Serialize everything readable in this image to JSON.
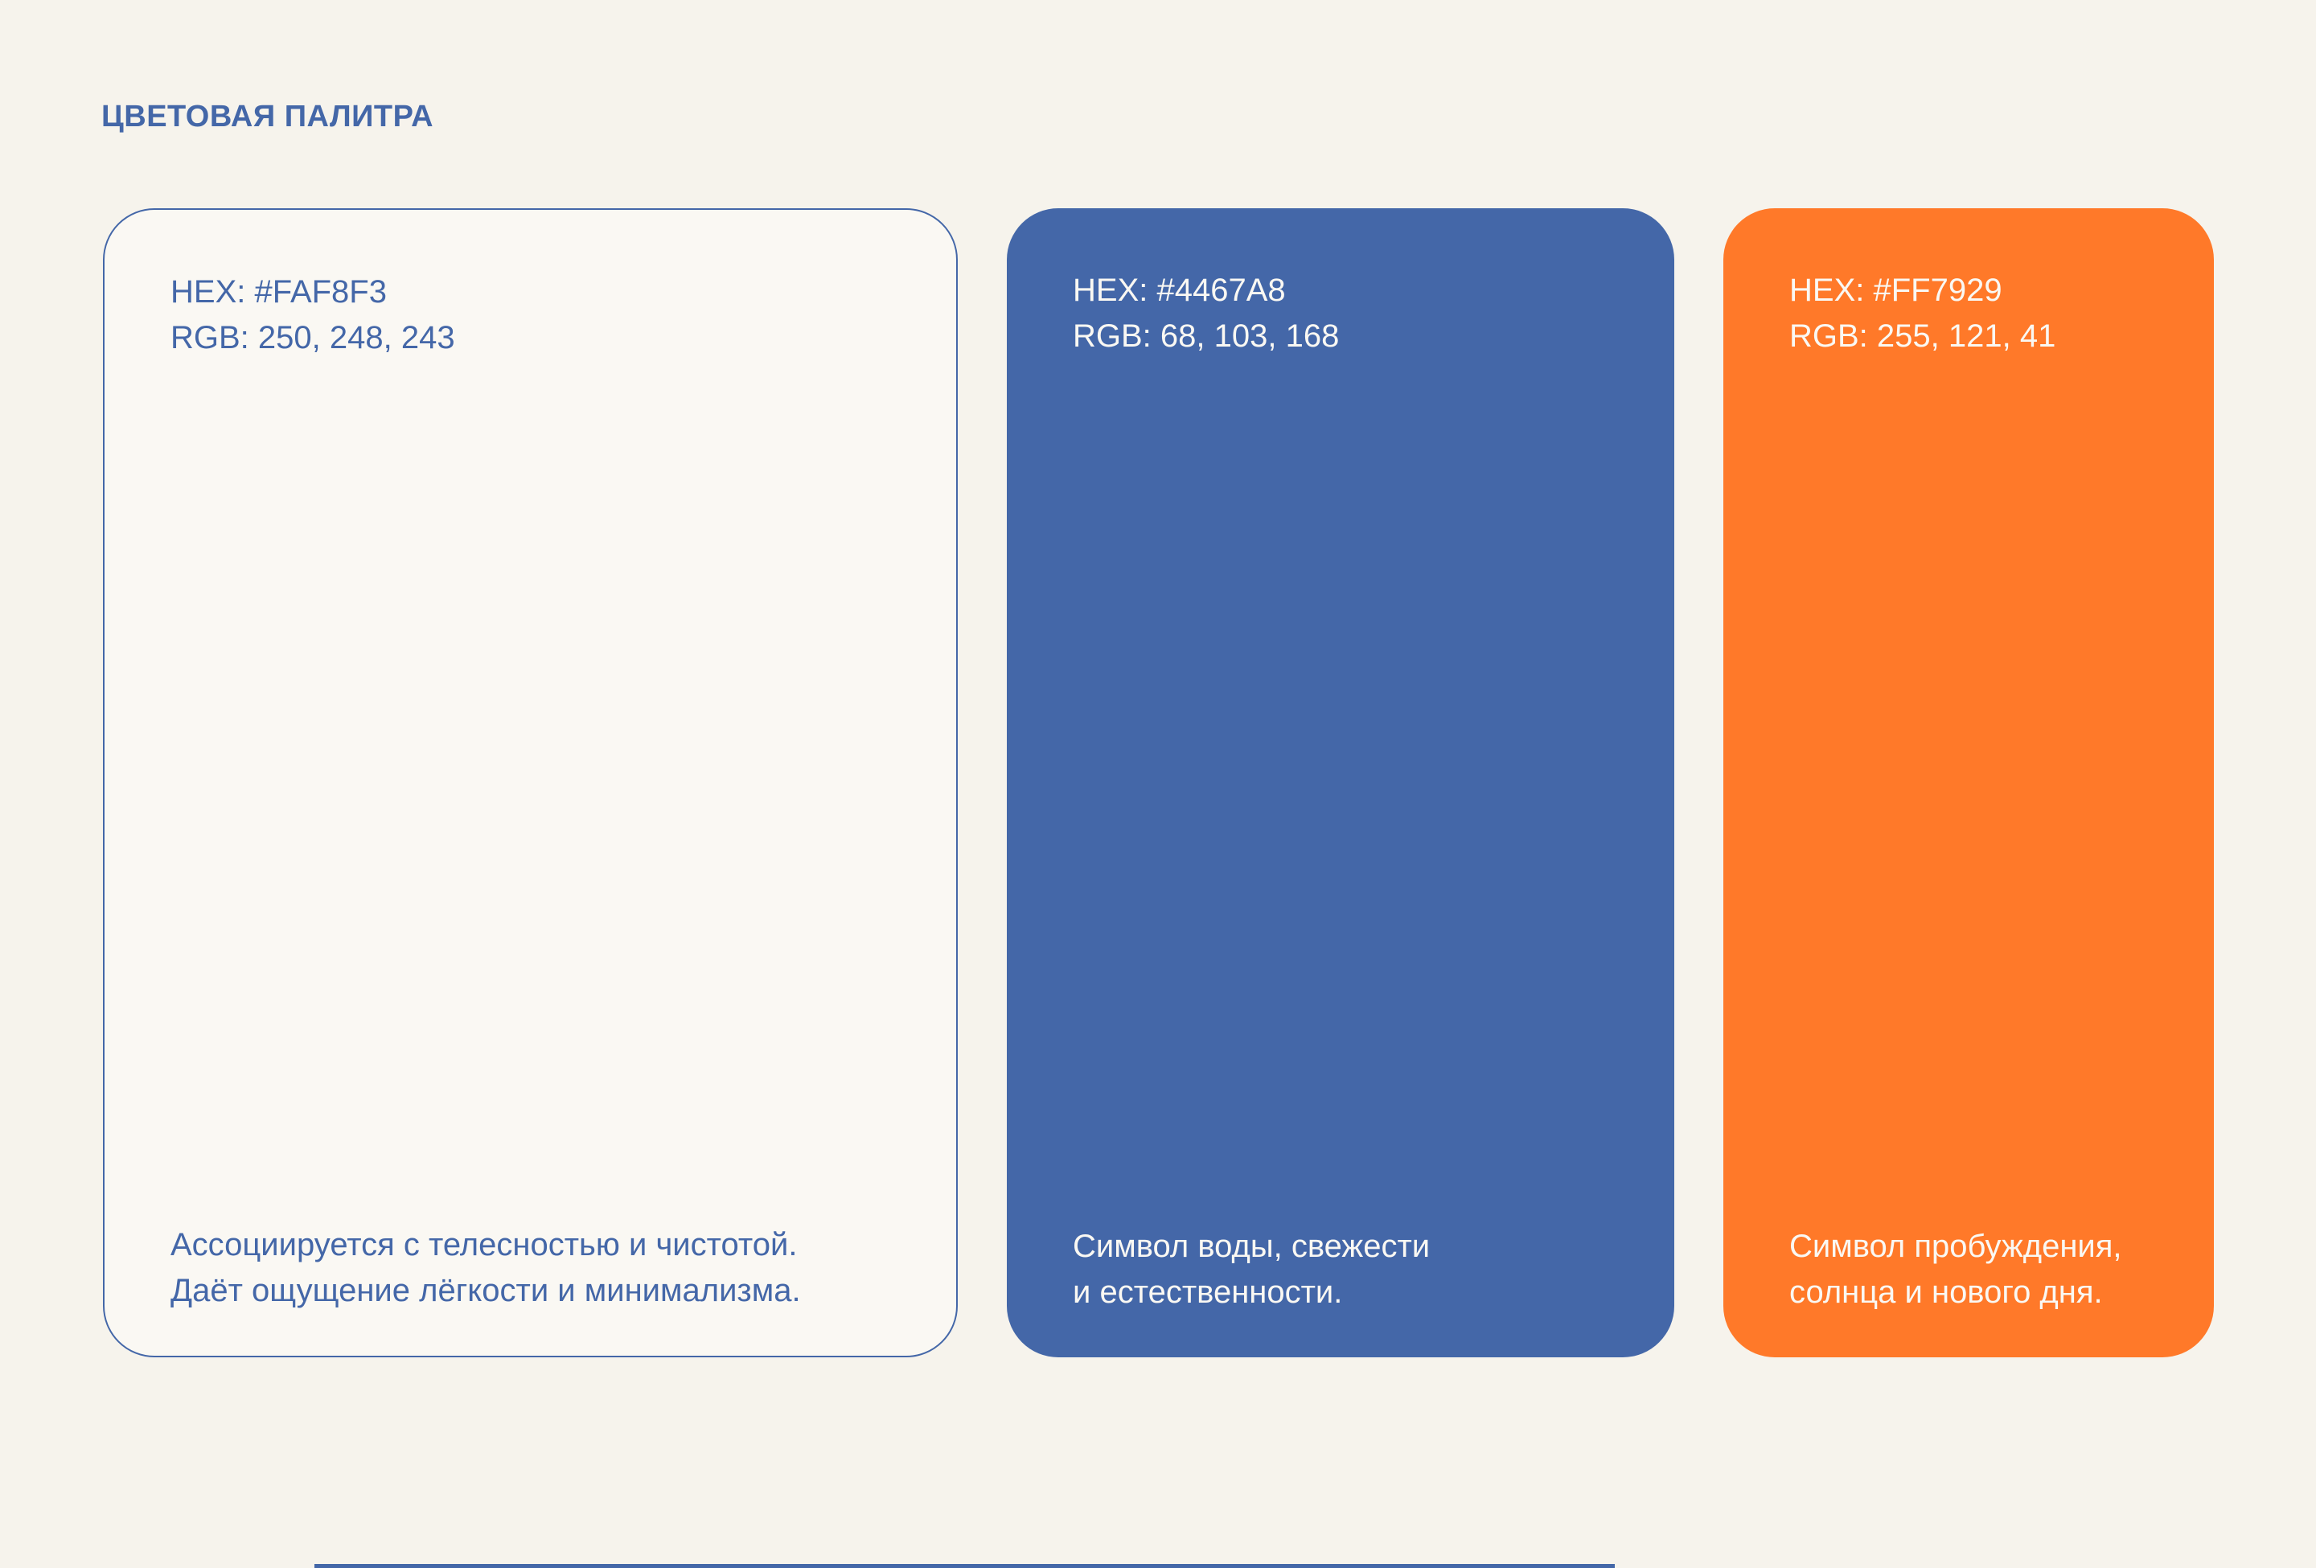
{
  "page": {
    "title": "ЦВЕТОВАЯ ПАЛИТРА",
    "background_color": "#F6F3EC",
    "accent_blue": "#4467A8",
    "accent_orange": "#FF7929",
    "bottom_peek_color": "#4467A8"
  },
  "palette": {
    "cards": [
      {
        "name": "cream",
        "hex_label": "HEX: #FAF8F3",
        "rgb_label": "RGB: 250, 248, 243",
        "fill": "#FAF8F3",
        "border_color": "#4467A8",
        "text_color": "#4467A8",
        "description_line1": "Ассоциируется с телесностью и чистотой.",
        "description_line2": "Даёт ощущение лёгкости и минимализма."
      },
      {
        "name": "blue",
        "hex_label": "HEX: #4467A8",
        "rgb_label": "RGB: 68, 103, 168",
        "fill": "#4467A8",
        "text_color": "#FAF8F3",
        "description_line1": "Символ воды, свежести",
        "description_line2": "и естественности."
      },
      {
        "name": "orange",
        "hex_label": "HEX: #FF7929",
        "rgb_label": "RGB: 255, 121, 41",
        "fill": "#FF7929",
        "text_color": "#FAF8F3",
        "description_line1": "Символ пробуждения,",
        "description_line2": "солнца и нового дня."
      }
    ]
  }
}
